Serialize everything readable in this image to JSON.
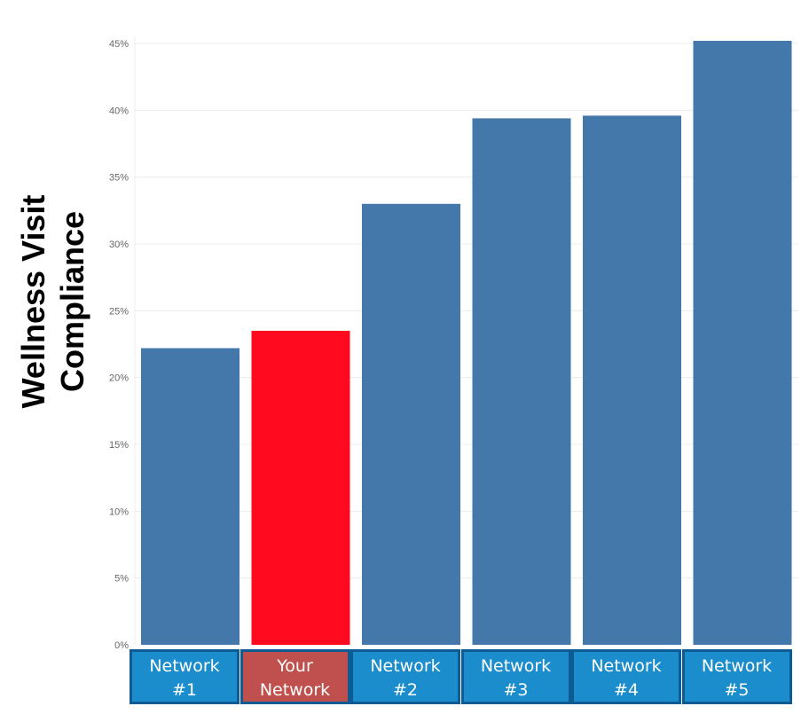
{
  "colors": {
    "bar_default": "#4478aa",
    "bar_highlight": "#ff0a1e",
    "box_default": "#1b8ccc",
    "box_highlight": "#c0504d",
    "box_border": "#0d5b92",
    "gridline": "#ececec",
    "tick_text": "#666666"
  },
  "chart_data": {
    "type": "bar",
    "ylabel_lines": [
      "Wellness Visit",
      "Compliance"
    ],
    "ylim": [
      0,
      45.6
    ],
    "yticks": [
      0,
      5,
      10,
      15,
      20,
      25,
      30,
      35,
      40,
      45
    ],
    "ytick_labels": [
      "0%",
      "5%",
      "10%",
      "15%",
      "20%",
      "25%",
      "30%",
      "35%",
      "40%",
      "45%"
    ],
    "grid": true,
    "categories": [
      {
        "lines": [
          "Network",
          "#1"
        ],
        "value": 22.2,
        "highlight": false
      },
      {
        "lines": [
          "Your",
          "Network"
        ],
        "value": 23.5,
        "highlight": true
      },
      {
        "lines": [
          "Network",
          "#2"
        ],
        "value": 33.0,
        "highlight": false
      },
      {
        "lines": [
          "Network",
          "#3"
        ],
        "value": 39.4,
        "highlight": false
      },
      {
        "lines": [
          "Network",
          "#4"
        ],
        "value": 39.6,
        "highlight": false
      },
      {
        "lines": [
          "Network",
          "#5"
        ],
        "value": 45.2,
        "highlight": false
      }
    ]
  }
}
